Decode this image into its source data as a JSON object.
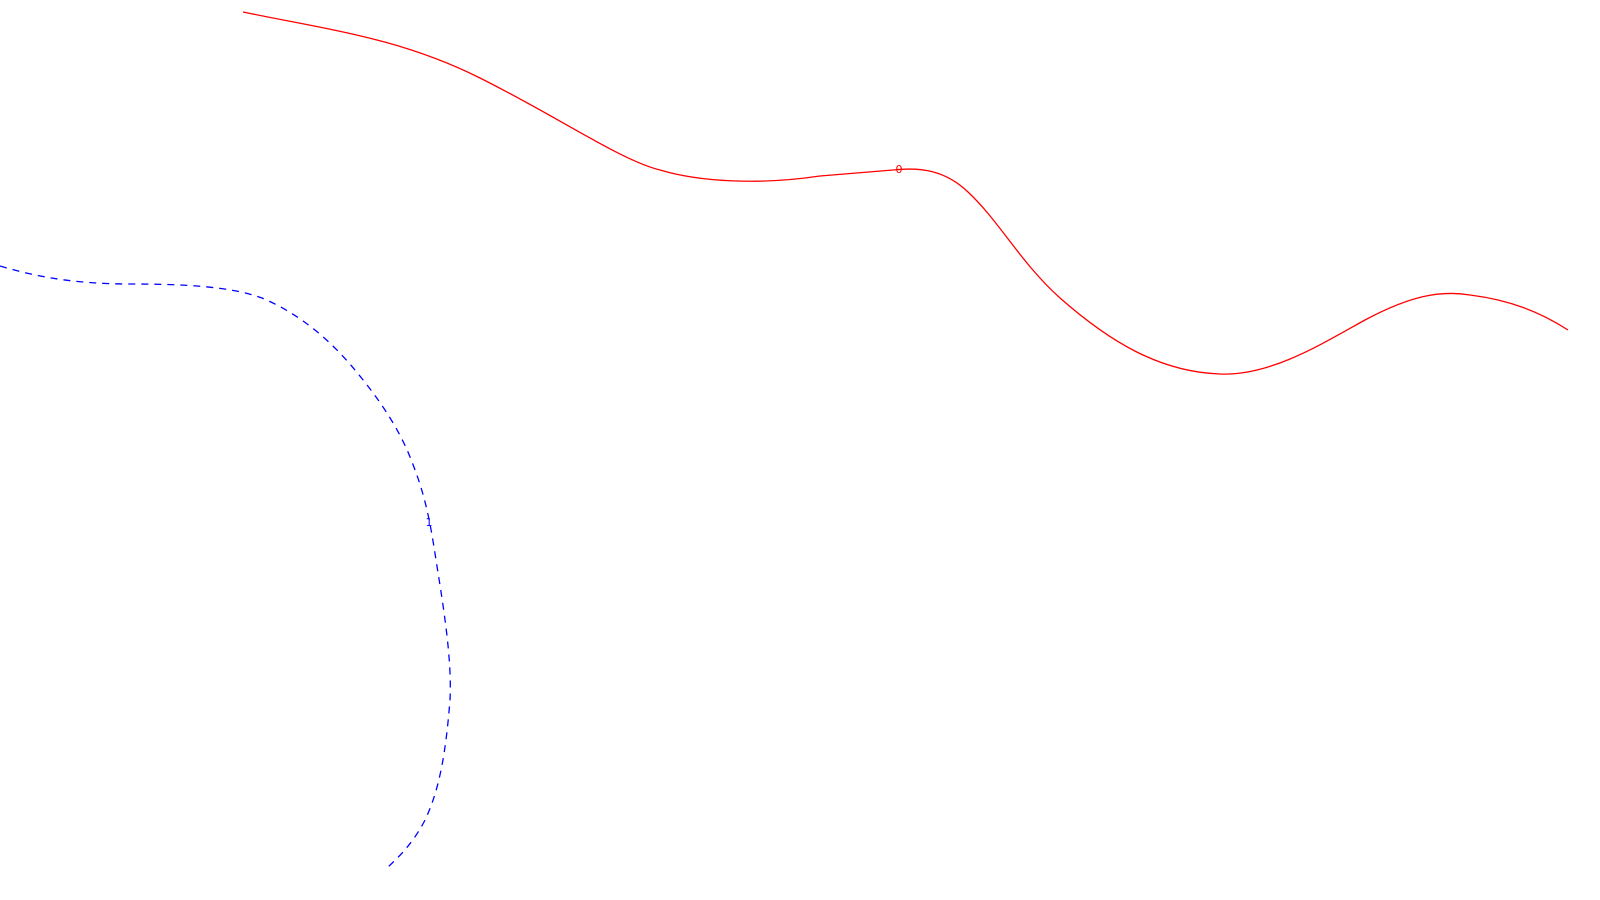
{
  "colors": {
    "background": "#ffffff",
    "solid_curve": "#ff0000",
    "dashed_curve": "#0000ff"
  },
  "curves": [
    {
      "label": "0",
      "style": "solid",
      "color": "#ff0000"
    },
    {
      "label": "1",
      "style": "dashed",
      "color": "#0000ff"
    }
  ]
}
